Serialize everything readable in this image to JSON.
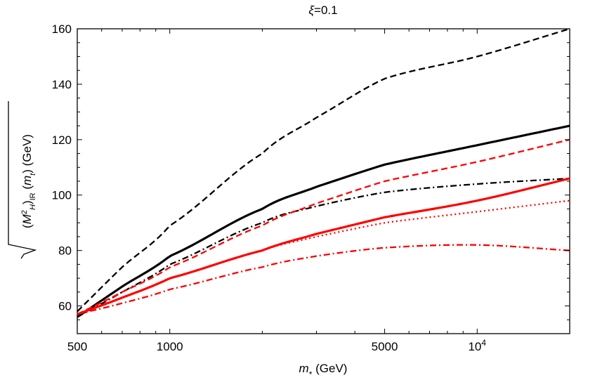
{
  "chart_data": {
    "type": "line",
    "title": "ξ=0.1",
    "xlabel": "m* (GeV)",
    "ylabel": "√((M²H)IR(mt)) (GeV)",
    "xscale": "log",
    "xlim": [
      500,
      20000
    ],
    "ylim": [
      50,
      160
    ],
    "x_ticks": [
      {
        "value": 500,
        "label": "500"
      },
      {
        "value": 1000,
        "label": "1000"
      },
      {
        "value": 5000,
        "label": "5000"
      },
      {
        "value": 10000,
        "label": "10^4"
      }
    ],
    "y_ticks": [
      {
        "value": 60,
        "label": "60"
      },
      {
        "value": 80,
        "label": "80"
      },
      {
        "value": 100,
        "label": "100"
      },
      {
        "value": 120,
        "label": "120"
      },
      {
        "value": 140,
        "label": "140"
      },
      {
        "value": 160,
        "label": "160"
      }
    ],
    "grid": false,
    "legend": "none",
    "x": [
      500,
      700,
      1000,
      2000,
      3000,
      5000,
      10000,
      20000
    ],
    "series": [
      {
        "color": "#000000",
        "style": "dashed",
        "values": [
          58,
          74,
          89,
          115,
          128,
          142,
          150,
          160
        ]
      },
      {
        "color": "#000000",
        "style": "solid",
        "values": [
          56,
          67,
          78,
          95,
          103,
          111,
          118,
          125
        ]
      },
      {
        "color": "#000000",
        "style": "dashdot",
        "values": [
          56,
          65,
          75,
          90,
          96,
          101,
          104,
          106
        ]
      },
      {
        "color": "#ff0000",
        "style": "dashed",
        "values": [
          57,
          65,
          74,
          89,
          97,
          105,
          112,
          120
        ]
      },
      {
        "color": "#ff0000",
        "style": "solid",
        "values": [
          57,
          63,
          70,
          80,
          86,
          92,
          98,
          106
        ]
      },
      {
        "color": "#ff0000",
        "style": "dotted",
        "values": [
          57,
          63,
          70,
          80,
          85,
          90,
          94,
          98
        ]
      },
      {
        "color": "#ff0000",
        "style": "dashdot",
        "values": [
          57,
          61,
          66,
          74,
          78,
          81,
          82,
          80
        ]
      }
    ]
  }
}
